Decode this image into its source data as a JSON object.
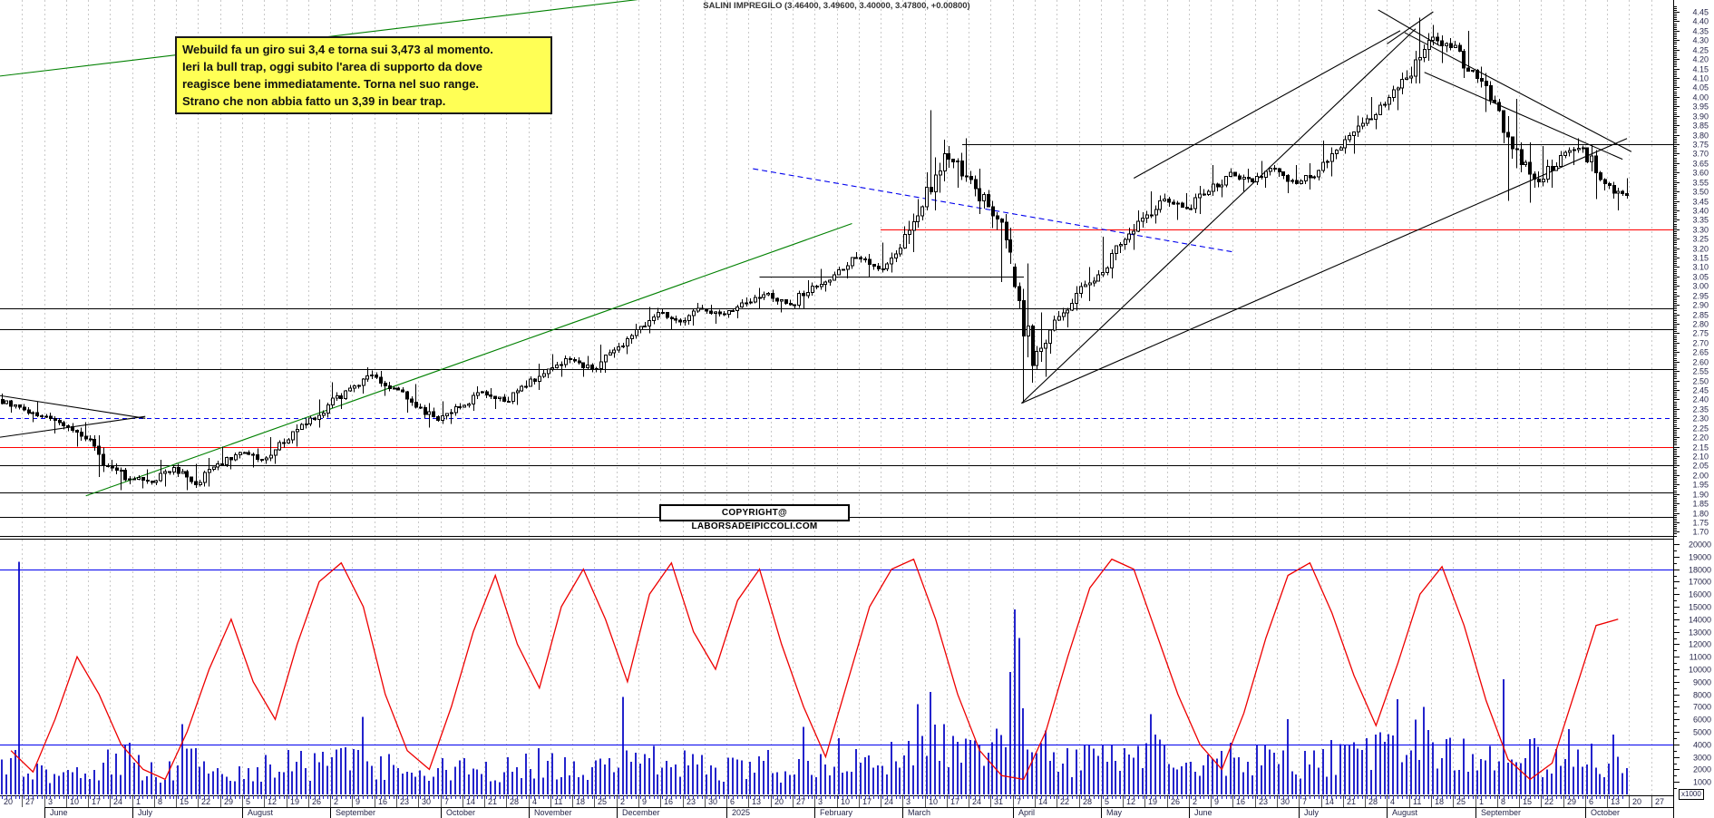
{
  "title": "SALINI IMPREGILO (3.46400, 3.49600, 3.40000, 3.47800, +0.00800)",
  "annotation": {
    "lines": [
      "Webuild fa un giro sui 3,4 e torna sui 3,473 al momento.",
      "Ieri la bull trap, oggi subito l'area di supporto da dove",
      "reagisce bene immediatamente. Torna nel suo range.",
      "Strano che non abbia fatto un 3,39 in bear trap."
    ]
  },
  "copyright": "COPYRIGHT@ LABORSADEIPICCOLI.COM",
  "colors": {
    "grid": "#c9c9c9",
    "axis_text": "#26264a",
    "candle": "#000000",
    "volume_bar": "#2323cc",
    "oscillator": "#ee0000",
    "level_red": "#ff0000",
    "level_blue": "#0000ee",
    "trend_green": "#008000",
    "trend_black": "#000000"
  },
  "chart_data": {
    "type": "candlestick",
    "symbol": "SALINI IMPREGILO",
    "last_quote": {
      "open": 3.464,
      "high": 3.496,
      "low": 3.4,
      "close": 3.478,
      "change": 0.008
    },
    "price_axis": {
      "min": 1.65,
      "max": 4.5,
      "tick_step": 0.05,
      "top_label": 4.45,
      "bottom_label": 1.7
    },
    "volume_axis": {
      "min": 0,
      "max": 20000,
      "tick_step": 1000,
      "note": "x1000"
    },
    "months": [
      {
        "label": "",
        "weeks": [
          "20",
          "27"
        ]
      },
      {
        "label": "June",
        "weeks": [
          "3",
          "10",
          "17",
          "24"
        ]
      },
      {
        "label": "July",
        "weeks": [
          "1",
          "8",
          "15",
          "22",
          "29"
        ]
      },
      {
        "label": "August",
        "weeks": [
          "5",
          "12",
          "19",
          "26"
        ]
      },
      {
        "label": "September",
        "weeks": [
          "2",
          "9",
          "16",
          "23",
          "30"
        ]
      },
      {
        "label": "October",
        "weeks": [
          "7",
          "14",
          "21",
          "28"
        ]
      },
      {
        "label": "November",
        "weeks": [
          "4",
          "11",
          "18",
          "25"
        ]
      },
      {
        "label": "December",
        "weeks": [
          "2",
          "9",
          "16",
          "23",
          "30"
        ]
      },
      {
        "label": "2025",
        "weeks": [
          "6",
          "13",
          "20",
          "27"
        ]
      },
      {
        "label": "February",
        "weeks": [
          "3",
          "10",
          "17",
          "24"
        ]
      },
      {
        "label": "March",
        "weeks": [
          "3",
          "10",
          "17",
          "24",
          "31"
        ]
      },
      {
        "label": "April",
        "weeks": [
          "7",
          "14",
          "22",
          "28"
        ]
      },
      {
        "label": "May",
        "weeks": [
          "5",
          "12",
          "19",
          "26"
        ]
      },
      {
        "label": "June",
        "weeks": [
          "2",
          "9",
          "16",
          "23",
          "30"
        ]
      },
      {
        "label": "July",
        "weeks": [
          "7",
          "14",
          "21",
          "28"
        ]
      },
      {
        "label": "August",
        "weeks": [
          "4",
          "11",
          "18",
          "25"
        ]
      },
      {
        "label": "September",
        "weeks": [
          "1",
          "8",
          "15",
          "22",
          "29"
        ]
      },
      {
        "label": "October",
        "weeks": [
          "6",
          "13",
          "20",
          "27"
        ]
      }
    ],
    "weekly_ohlcv": [
      [
        2.4,
        2.43,
        2.33,
        2.36,
        2600
      ],
      [
        2.36,
        2.39,
        2.28,
        2.31,
        1800
      ],
      [
        2.31,
        2.33,
        2.22,
        2.26,
        1600
      ],
      [
        2.26,
        2.28,
        2.15,
        2.19,
        2000
      ],
      [
        2.19,
        2.21,
        1.99,
        2.05,
        2400
      ],
      [
        2.05,
        2.08,
        1.92,
        1.98,
        2800
      ],
      [
        1.98,
        2.03,
        1.93,
        1.96,
        2200
      ],
      [
        1.96,
        2.08,
        1.94,
        2.04,
        1800
      ],
      [
        2.04,
        2.06,
        1.92,
        1.95,
        2600
      ],
      [
        1.95,
        2.09,
        1.94,
        2.06,
        2000
      ],
      [
        2.06,
        2.15,
        2.03,
        2.12,
        1700
      ],
      [
        2.12,
        2.14,
        2.04,
        2.08,
        1500
      ],
      [
        2.08,
        2.2,
        2.06,
        2.17,
        2100
      ],
      [
        2.17,
        2.3,
        2.15,
        2.27,
        2600
      ],
      [
        2.27,
        2.4,
        2.25,
        2.37,
        2400
      ],
      [
        2.37,
        2.49,
        2.35,
        2.46,
        2800
      ],
      [
        2.46,
        2.57,
        2.43,
        2.53,
        3000
      ],
      [
        2.53,
        2.55,
        2.42,
        2.46,
        2200
      ],
      [
        2.46,
        2.48,
        2.33,
        2.36,
        1900
      ],
      [
        2.36,
        2.38,
        2.25,
        2.29,
        1700
      ],
      [
        2.29,
        2.39,
        2.27,
        2.36,
        2000
      ],
      [
        2.36,
        2.47,
        2.34,
        2.44,
        2300
      ],
      [
        2.44,
        2.46,
        2.35,
        2.39,
        1900
      ],
      [
        2.39,
        2.5,
        2.37,
        2.47,
        2200
      ],
      [
        2.47,
        2.59,
        2.45,
        2.56,
        2500
      ],
      [
        2.56,
        2.64,
        2.52,
        2.61,
        2300
      ],
      [
        2.61,
        2.63,
        2.52,
        2.56,
        1900
      ],
      [
        2.56,
        2.69,
        2.54,
        2.66,
        2400
      ],
      [
        2.66,
        2.8,
        2.64,
        2.77,
        2800
      ],
      [
        2.77,
        2.89,
        2.75,
        2.86,
        3000
      ],
      [
        2.86,
        2.88,
        2.77,
        2.81,
        2300
      ],
      [
        2.81,
        2.91,
        2.79,
        2.88,
        2500
      ],
      [
        2.88,
        2.9,
        2.8,
        2.85,
        1800
      ],
      [
        2.85,
        2.94,
        2.83,
        2.91,
        2200
      ],
      [
        2.91,
        2.99,
        2.88,
        2.96,
        2400
      ],
      [
        2.96,
        2.98,
        2.86,
        2.9,
        2000
      ],
      [
        2.9,
        3.03,
        2.88,
        3.0,
        2600
      ],
      [
        3.0,
        3.09,
        2.97,
        3.06,
        2800
      ],
      [
        3.06,
        3.18,
        3.04,
        3.15,
        3100
      ],
      [
        3.15,
        3.17,
        3.05,
        3.09,
        2400
      ],
      [
        3.09,
        3.23,
        3.07,
        3.2,
        2900
      ],
      [
        3.2,
        3.46,
        3.18,
        3.42,
        3400
      ],
      [
        3.42,
        3.93,
        3.4,
        3.7,
        4200
      ],
      [
        3.7,
        3.78,
        3.52,
        3.58,
        3300
      ],
      [
        3.58,
        3.62,
        3.38,
        3.42,
        3000
      ],
      [
        3.42,
        3.45,
        3.02,
        3.18,
        3800
      ],
      [
        3.1,
        3.12,
        2.38,
        2.58,
        5200
      ],
      [
        2.58,
        2.86,
        2.52,
        2.82,
        3600
      ],
      [
        2.82,
        3.0,
        2.78,
        2.96,
        3000
      ],
      [
        2.96,
        3.1,
        2.92,
        3.06,
        2700
      ],
      [
        3.06,
        3.26,
        3.04,
        3.22,
        2900
      ],
      [
        3.22,
        3.4,
        3.19,
        3.36,
        3200
      ],
      [
        3.36,
        3.5,
        3.33,
        3.46,
        3400
      ],
      [
        3.46,
        3.49,
        3.35,
        3.41,
        2700
      ],
      [
        3.41,
        3.53,
        3.38,
        3.5,
        2600
      ],
      [
        3.5,
        3.64,
        3.47,
        3.6,
        3000
      ],
      [
        3.6,
        3.62,
        3.5,
        3.55,
        2500
      ],
      [
        3.55,
        3.66,
        3.52,
        3.62,
        2800
      ],
      [
        3.62,
        3.64,
        3.49,
        3.54,
        2400
      ],
      [
        3.54,
        3.65,
        3.51,
        3.61,
        2600
      ],
      [
        3.61,
        3.77,
        3.58,
        3.73,
        3000
      ],
      [
        3.73,
        3.9,
        3.7,
        3.86,
        3300
      ],
      [
        3.86,
        4.0,
        3.83,
        3.96,
        3500
      ],
      [
        3.96,
        4.14,
        3.93,
        4.1,
        3600
      ],
      [
        4.1,
        4.42,
        4.07,
        4.3,
        4000
      ],
      [
        4.3,
        4.38,
        4.18,
        4.26,
        3400
      ],
      [
        4.26,
        4.35,
        4.1,
        4.14,
        3200
      ],
      [
        4.14,
        4.16,
        3.92,
        3.97,
        3000
      ],
      [
        3.97,
        3.99,
        3.45,
        3.72,
        3800
      ],
      [
        3.72,
        3.76,
        3.44,
        3.55,
        3200
      ],
      [
        3.55,
        3.74,
        3.52,
        3.69,
        2700
      ],
      [
        3.69,
        3.78,
        3.64,
        3.73,
        2500
      ],
      [
        3.73,
        3.75,
        3.46,
        3.54,
        3000
      ],
      [
        3.54,
        3.57,
        3.4,
        3.478,
        2600
      ]
    ],
    "oscillator_weekly": [
      3500,
      1800,
      6000,
      11000,
      8000,
      4000,
      2000,
      1200,
      5000,
      10000,
      14000,
      9000,
      6000,
      12000,
      17000,
      18500,
      15000,
      8000,
      3500,
      2000,
      7000,
      13000,
      17500,
      12000,
      8500,
      15000,
      18000,
      14000,
      9000,
      16000,
      18500,
      13000,
      10000,
      15500,
      18000,
      12000,
      7000,
      3000,
      9000,
      15000,
      18000,
      18800,
      14000,
      8000,
      3500,
      1500,
      1200,
      5000,
      11000,
      16500,
      18800,
      18000,
      13000,
      8000,
      4000,
      2000,
      6500,
      12500,
      17500,
      18500,
      14500,
      9500,
      5500,
      10500,
      16000,
      18200,
      13500,
      7500,
      2800,
      1200,
      2500,
      8000,
      13500,
      14000
    ],
    "volume_spikes": [
      [
        0,
        4,
        18600
      ],
      [
        8,
        1,
        5600
      ],
      [
        16,
        2,
        6200
      ],
      [
        28,
        1,
        7800
      ],
      [
        36,
        2,
        5400
      ],
      [
        41,
        3,
        7200
      ],
      [
        42,
        1,
        8200
      ],
      [
        45,
        4,
        9800
      ],
      [
        46,
        0,
        14800
      ],
      [
        46,
        1,
        12500
      ],
      [
        52,
        1,
        6400
      ],
      [
        58,
        2,
        6000
      ],
      [
        63,
        2,
        7600
      ],
      [
        64,
        3,
        7000
      ],
      [
        68,
        1,
        9200
      ],
      [
        71,
        1,
        5200
      ],
      [
        73,
        1,
        4800
      ]
    ],
    "levels": [
      {
        "price": 3.75,
        "color": "#000000",
        "x1w": 43.7,
        "x2w": 76,
        "dash": false
      },
      {
        "price": 3.3,
        "color": "#ff0000",
        "x1w": 40.0,
        "x2w": 76,
        "dash": false
      },
      {
        "price": 3.05,
        "color": "#000000",
        "x1w": 34.5,
        "x2w": 46.5,
        "dash": false
      },
      {
        "price": 2.88,
        "color": "#000000",
        "x1w": 0,
        "x2w": 76,
        "dash": false
      },
      {
        "price": 2.77,
        "color": "#000000",
        "x1w": 0,
        "x2w": 76,
        "dash": false
      },
      {
        "price": 2.56,
        "color": "#000000",
        "x1w": 0,
        "x2w": 76,
        "dash": false
      },
      {
        "price": 2.3,
        "color": "#0000ee",
        "x1w": 0,
        "x2w": 76,
        "dash": true
      },
      {
        "price": 2.15,
        "color": "#ff0000",
        "x1w": 0,
        "x2w": 76,
        "dash": false
      },
      {
        "price": 2.05,
        "color": "#000000",
        "x1w": 0,
        "x2w": 76,
        "dash": false
      },
      {
        "price": 1.91,
        "color": "#000000",
        "x1w": 0,
        "x2w": 76,
        "dash": false
      },
      {
        "price": 1.78,
        "color": "#000000",
        "x1w": 0,
        "x2w": 76,
        "dash": false
      },
      {
        "price": 1.68,
        "color": "#000000",
        "x1w": 0,
        "x2w": 76,
        "dash": false
      }
    ],
    "volume_levels": [
      {
        "value": 18000,
        "color": "#0000ee"
      },
      {
        "value": 4000,
        "color": "#0000ee"
      }
    ],
    "trendlines": [
      {
        "color": "#008000",
        "dash": false,
        "w1": 0,
        "p1": 4.11,
        "w2": 31.5,
        "p2": 4.55
      },
      {
        "color": "#008000",
        "dash": false,
        "w1": 3.9,
        "p1": 1.89,
        "w2": 38.7,
        "p2": 3.33
      },
      {
        "color": "#000000",
        "dash": false,
        "w1": 0,
        "p1": 2.42,
        "w2": 6.6,
        "p2": 2.3
      },
      {
        "color": "#000000",
        "dash": false,
        "w1": 0,
        "p1": 2.2,
        "w2": 6.6,
        "p2": 2.31
      },
      {
        "color": "#000000",
        "dash": false,
        "w1": 46.4,
        "p1": 2.38,
        "w2": 64.3,
        "p2": 4.36
      },
      {
        "color": "#000000",
        "dash": false,
        "w1": 46.4,
        "p1": 2.38,
        "w2": 73.9,
        "p2": 3.78
      },
      {
        "color": "#000000",
        "dash": false,
        "w1": 63.6,
        "p1": 4.35,
        "w2": 51.5,
        "p2": 3.57
      },
      {
        "color": "#000000",
        "dash": false,
        "w1": 63.8,
        "p1": 4.34,
        "w2": 74.1,
        "p2": 3.71
      },
      {
        "color": "#000000",
        "dash": false,
        "w1": 64.7,
        "p1": 4.13,
        "w2": 73.7,
        "p2": 3.67
      },
      {
        "color": "#000000",
        "dash": false,
        "w1": 62.6,
        "p1": 4.46,
        "w2": 65.4,
        "p2": 4.27
      },
      {
        "color": "#000000",
        "dash": false,
        "w1": 63.0,
        "p1": 4.28,
        "w2": 65.1,
        "p2": 4.45
      },
      {
        "color": "#0000ee",
        "dash": true,
        "w1": 34.2,
        "p1": 3.62,
        "w2": 56.0,
        "p2": 3.18
      }
    ]
  }
}
